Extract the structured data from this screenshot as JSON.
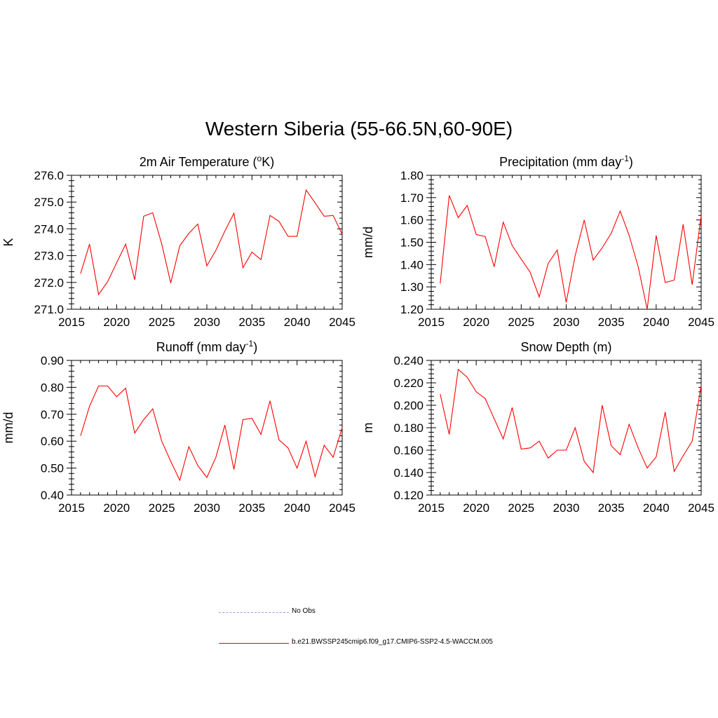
{
  "figure": {
    "title": "Western Siberia (55-66.5N,60-90E)",
    "legend": [
      {
        "label": "No Obs",
        "color": "#9aa0e0",
        "style": "dashed"
      },
      {
        "label": "b.e21.BWSSP245cmip6.f09_g17.CMIP6-SSP2-4.5-WACCM.005",
        "color": "#ff0000",
        "style": "solid"
      }
    ]
  },
  "chart_data": [
    {
      "type": "line",
      "title": "2m Air Temperature",
      "title_unit": "(oK)",
      "ylabel": "K",
      "xlim": [
        2015,
        2045
      ],
      "ylim": [
        271.0,
        276.0
      ],
      "xticks": [
        "2015",
        "2020",
        "2025",
        "2030",
        "2035",
        "2040",
        "2045"
      ],
      "yticks": [
        "271.0",
        "272.0",
        "273.0",
        "274.0",
        "275.0",
        "276.0"
      ],
      "series": [
        {
          "color": "#ff0000",
          "x": [
            2016,
            2017,
            2018,
            2019,
            2020,
            2021,
            2022,
            2023,
            2024,
            2025,
            2026,
            2027,
            2028,
            2029,
            2030,
            2031,
            2032,
            2033,
            2034,
            2035,
            2036,
            2037,
            2038,
            2039,
            2040,
            2041,
            2042,
            2043,
            2044,
            2045
          ],
          "values": [
            272.33,
            273.43,
            271.55,
            272.03,
            272.73,
            273.43,
            272.1,
            274.47,
            274.6,
            273.43,
            271.98,
            273.37,
            273.83,
            274.18,
            272.62,
            273.2,
            273.92,
            274.58,
            272.55,
            273.13,
            272.85,
            274.5,
            274.28,
            273.72,
            273.72,
            275.45,
            274.97,
            274.47,
            274.5,
            273.8
          ]
        }
      ]
    },
    {
      "type": "line",
      "title": "Precipitation",
      "title_unit": "(mm day-1)",
      "ylabel": "mm/d",
      "xlim": [
        2015,
        2045
      ],
      "ylim": [
        1.2,
        1.8
      ],
      "xticks": [
        "2015",
        "2020",
        "2025",
        "2030",
        "2035",
        "2040",
        "2045"
      ],
      "yticks": [
        "1.20",
        "1.30",
        "1.40",
        "1.50",
        "1.60",
        "1.70",
        "1.80"
      ],
      "series": [
        {
          "color": "#ff0000",
          "x": [
            2016,
            2017,
            2018,
            2019,
            2020,
            2021,
            2022,
            2023,
            2024,
            2025,
            2026,
            2027,
            2028,
            2029,
            2030,
            2031,
            2032,
            2033,
            2034,
            2035,
            2036,
            2037,
            2038,
            2039,
            2040,
            2041,
            2042,
            2043,
            2044,
            2045
          ],
          "values": [
            1.315,
            1.71,
            1.61,
            1.665,
            1.535,
            1.525,
            1.39,
            1.59,
            1.485,
            1.425,
            1.365,
            1.255,
            1.405,
            1.465,
            1.23,
            1.44,
            1.6,
            1.42,
            1.475,
            1.54,
            1.64,
            1.53,
            1.39,
            1.2,
            1.53,
            1.32,
            1.33,
            1.58,
            1.31,
            1.62
          ]
        }
      ]
    },
    {
      "type": "line",
      "title": "Runoff",
      "title_unit": "(mm day-1)",
      "ylabel": "mm/d",
      "xlim": [
        2015,
        2045
      ],
      "ylim": [
        0.4,
        0.9
      ],
      "xticks": [
        "2015",
        "2020",
        "2025",
        "2030",
        "2035",
        "2040",
        "2045"
      ],
      "yticks": [
        "0.40",
        "0.50",
        "0.60",
        "0.70",
        "0.80",
        "0.90"
      ],
      "series": [
        {
          "color": "#ff0000",
          "x": [
            2016,
            2017,
            2018,
            2019,
            2020,
            2021,
            2022,
            2023,
            2024,
            2025,
            2026,
            2027,
            2028,
            2029,
            2030,
            2031,
            2032,
            2033,
            2034,
            2035,
            2036,
            2037,
            2038,
            2039,
            2040,
            2041,
            2042,
            2043,
            2044,
            2045
          ],
          "values": [
            0.62,
            0.73,
            0.805,
            0.805,
            0.765,
            0.797,
            0.63,
            0.68,
            0.72,
            0.6,
            0.525,
            0.455,
            0.58,
            0.51,
            0.465,
            0.54,
            0.66,
            0.495,
            0.68,
            0.685,
            0.625,
            0.75,
            0.605,
            0.575,
            0.5,
            0.6,
            0.468,
            0.585,
            0.54,
            0.65
          ]
        }
      ]
    },
    {
      "type": "line",
      "title": "Snow Depth",
      "title_unit": "(m)",
      "ylabel": "m",
      "xlim": [
        2015,
        2045
      ],
      "ylim": [
        0.12,
        0.24
      ],
      "xticks": [
        "2015",
        "2020",
        "2025",
        "2030",
        "2035",
        "2040",
        "2045"
      ],
      "yticks": [
        "0.120",
        "0.140",
        "0.160",
        "0.180",
        "0.200",
        "0.220",
        "0.240"
      ],
      "series": [
        {
          "color": "#ff0000",
          "x": [
            2016,
            2017,
            2018,
            2019,
            2020,
            2021,
            2022,
            2023,
            2024,
            2025,
            2026,
            2027,
            2028,
            2029,
            2030,
            2031,
            2032,
            2033,
            2034,
            2035,
            2036,
            2037,
            2038,
            2039,
            2040,
            2041,
            2042,
            2043,
            2044,
            2045
          ],
          "values": [
            0.21,
            0.174,
            0.232,
            0.225,
            0.212,
            0.206,
            0.188,
            0.17,
            0.198,
            0.161,
            0.162,
            0.168,
            0.153,
            0.16,
            0.16,
            0.18,
            0.15,
            0.14,
            0.2,
            0.164,
            0.156,
            0.183,
            0.162,
            0.144,
            0.154,
            0.194,
            0.141,
            0.155,
            0.168,
            0.218
          ]
        }
      ]
    }
  ]
}
